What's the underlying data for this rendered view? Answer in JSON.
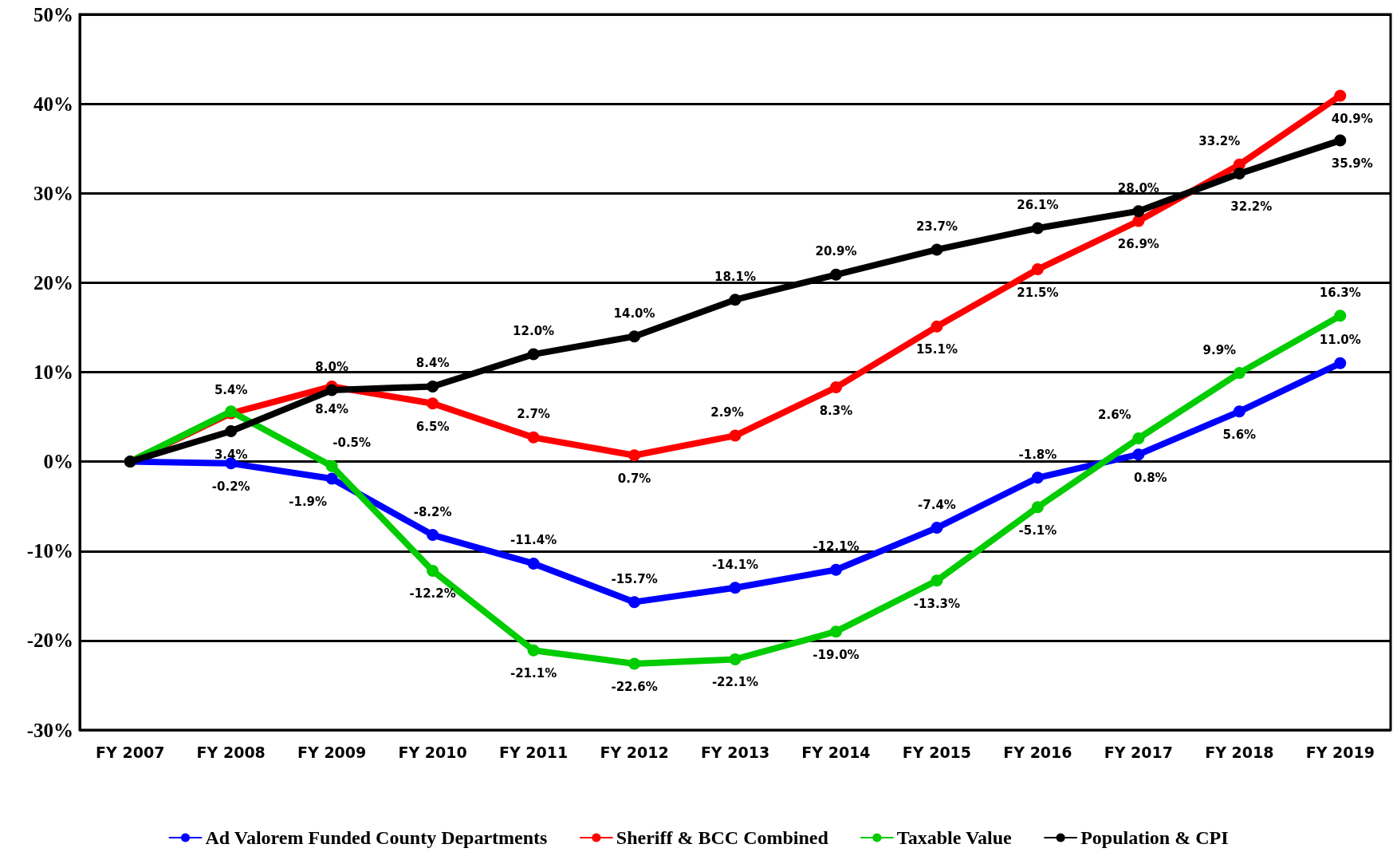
{
  "chart_data": {
    "type": "line",
    "categories": [
      "FY 2007",
      "FY 2008",
      "FY 2009",
      "FY 2010",
      "FY 2011",
      "FY 2012",
      "FY 2013",
      "FY 2014",
      "FY 2015",
      "FY 2016",
      "FY 2017",
      "FY 2018",
      "FY 2019"
    ],
    "series": [
      {
        "name": "Ad Valorem Funded County Departments",
        "color": "#0000ff",
        "values": [
          0,
          -0.2,
          -1.9,
          -8.2,
          -11.4,
          -15.7,
          -14.1,
          -12.1,
          -7.4,
          -1.8,
          0.8,
          5.6,
          11.0
        ],
        "value_labels": [
          null,
          "-0.2%",
          "-1.9%",
          "-8.2%",
          "-11.4%",
          "-15.7%",
          "-14.1%",
          "-12.1%",
          "-7.4%",
          "-1.8%",
          "0.8%",
          "5.6%",
          "11.0%"
        ]
      },
      {
        "name": "Sheriff & BCC Combined",
        "color": "#ff0000",
        "values": [
          0,
          5.4,
          8.4,
          6.5,
          2.7,
          0.7,
          2.9,
          8.3,
          15.1,
          21.5,
          26.9,
          33.2,
          40.9
        ],
        "value_labels": [
          null,
          "5.4%",
          "8.4%",
          "6.5%",
          "2.7%",
          "0.7%",
          "2.9%",
          "8.3%",
          "15.1%",
          "21.5%",
          "26.9%",
          "33.2%",
          "40.9%"
        ]
      },
      {
        "name": "Taxable Value",
        "color": "#00cc00",
        "values": [
          0,
          5.6,
          -0.5,
          -12.2,
          -21.1,
          -22.6,
          -22.1,
          -19.0,
          -13.3,
          -5.1,
          2.6,
          9.9,
          16.3
        ],
        "value_labels": [
          null,
          null,
          "-0.5%",
          "-12.2%",
          "-21.1%",
          "-22.6%",
          "-22.1%",
          "-19.0%",
          "-13.3%",
          "-5.1%",
          "2.6%",
          "9.9%",
          "16.3%"
        ]
      },
      {
        "name": "Population & CPI",
        "color": "#000000",
        "values": [
          0,
          3.4,
          8.0,
          8.4,
          12.0,
          14.0,
          18.1,
          20.9,
          23.7,
          26.1,
          28.0,
          32.2,
          35.9
        ],
        "value_labels": [
          null,
          "3.4%",
          "8.0%",
          "8.4%",
          "12.0%",
          "14.0%",
          "18.1%",
          "20.9%",
          "23.7%",
          "26.1%",
          "28.0%",
          "32.2%",
          "35.9%"
        ]
      }
    ],
    "ylim": [
      -30,
      50
    ],
    "yticks": [
      {
        "value": -30,
        "label": "-30%"
      },
      {
        "value": -20,
        "label": "-20%"
      },
      {
        "value": -10,
        "label": "-10%"
      },
      {
        "value": 0,
        "label": "0%"
      },
      {
        "value": 10,
        "label": "10%"
      },
      {
        "value": 20,
        "label": "20%"
      },
      {
        "value": 30,
        "label": "30%"
      },
      {
        "value": 40,
        "label": "40%"
      },
      {
        "value": 50,
        "label": "50%"
      }
    ],
    "grid": "y",
    "legend": "bottom",
    "marker": "circle",
    "line_style": "solid"
  }
}
